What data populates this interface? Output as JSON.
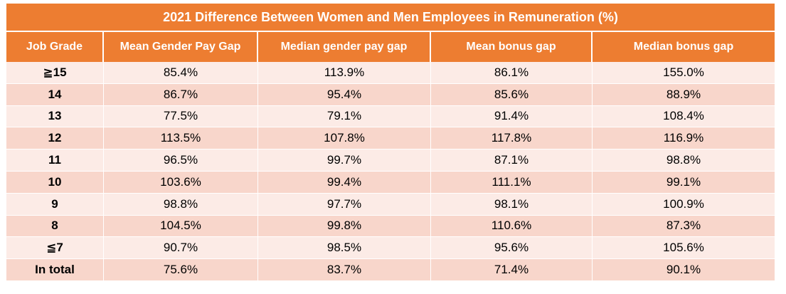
{
  "chart_data": {
    "type": "table",
    "title": "2021 Difference Between Women and Men Employees in Remuneration (%)",
    "columns": [
      "Job Grade",
      "Mean Gender Pay Gap",
      "Median gender pay gap",
      "Mean bonus gap",
      "Median bonus gap"
    ],
    "rows": [
      [
        "≧15",
        "85.4%",
        "113.9%",
        "86.1%",
        "155.0%"
      ],
      [
        "14",
        "86.7%",
        "95.4%",
        "85.6%",
        "88.9%"
      ],
      [
        "13",
        "77.5%",
        "79.1%",
        "91.4%",
        "108.4%"
      ],
      [
        "12",
        "113.5%",
        "107.8%",
        "117.8%",
        "116.9%"
      ],
      [
        "11",
        "96.5%",
        "99.7%",
        "87.1%",
        "98.8%"
      ],
      [
        "10",
        "103.6%",
        "99.4%",
        "111.1%",
        "99.1%"
      ],
      [
        "9",
        "98.8%",
        "97.7%",
        "98.1%",
        "100.9%"
      ],
      [
        "8",
        "104.5%",
        "99.8%",
        "110.6%",
        "87.3%"
      ],
      [
        "≦7",
        "90.7%",
        "98.5%",
        "95.6%",
        "105.6%"
      ],
      [
        "In total",
        "75.6%",
        "83.7%",
        "71.4%",
        "90.1%"
      ]
    ],
    "colors": {
      "header": "#ed7d31",
      "row_light": "#fcebe6",
      "row_dark": "#f8d6cb"
    }
  }
}
